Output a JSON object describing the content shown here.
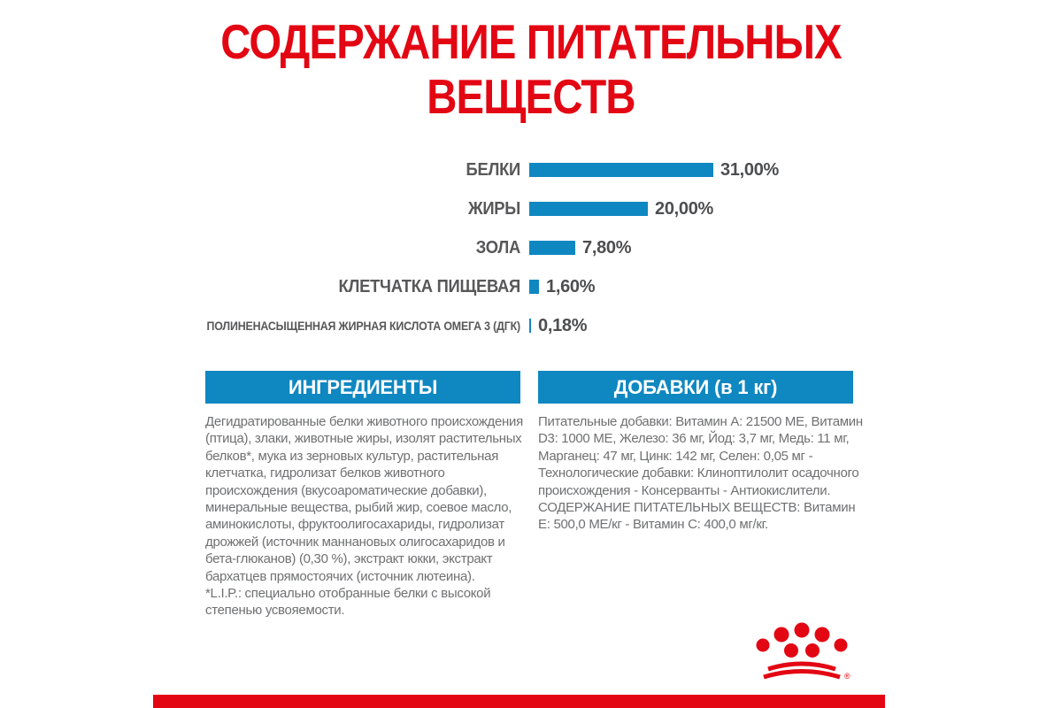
{
  "title": {
    "line1": "СОДЕРЖАНИЕ ПИТАТЕЛЬНЫХ",
    "line2": "ВЕЩЕСТВ"
  },
  "chart_data": {
    "type": "bar",
    "orientation": "horizontal",
    "title": "СОДЕРЖАНИЕ ПИТАТЕЛЬНЫХ ВЕЩЕСТВ",
    "categories": [
      "БЕЛКИ",
      "ЖИРЫ",
      "ЗОЛА",
      "КЛЕТЧАТКА ПИЩЕВАЯ",
      "ПОЛИНЕНАСЫЩЕННАЯ ЖИРНАЯ КИСЛОТА ОМЕГА 3 (ДГК)"
    ],
    "values": [
      31.0,
      20.0,
      7.8,
      1.6,
      0.18
    ],
    "value_labels": [
      "31,00%",
      "20,00%",
      "7,80%",
      "1,60%",
      "0,18%"
    ],
    "unit": "%",
    "xlim": [
      0,
      31
    ],
    "grid": false,
    "legend": false,
    "bar_color": "#0f87c1",
    "label_color": "#58585a"
  },
  "sections": {
    "ingredients": {
      "header": "ИНГРЕДИЕНТЫ",
      "paragraphs": [
        "Дегидратированные белки животного происхождения (птица), злаки, животные жиры, изолят растительных белков*, мука из зерновых культур, растительная клетчатка, гидролизат белков животного происхождения (вкусоароматические добавки), минеральные вещества, рыбий жир, соевое масло, аминокислоты, фруктоолигосахариды, гидролизат дрожжей (источник маннановых олигосахаридов и бета-глюканов) (0,30 %), экстракт юкки, экстракт бархатцев прямостоячих (источник лютеина).",
        "*L.I.P.: специально отобранные белки с высокой степенью усвояемости."
      ]
    },
    "additives": {
      "header": "ДОБАВКИ (в 1 кг)",
      "paragraphs": [
        "Питательные добавки: Витамин A: 21500 ME, Витамин D3: 1000 ME, Железо: 36 мг, Йод: 3,7 мг, Медь: 11 мг, Марганец: 47 мг, Цинк: 142 мг, Селен: 0,05 мг - Технологические добавки: Клиноптилолит осадочного происхождения - Консерванты - Антиокислители.",
        "СОДЕРЖАНИЕ ПИТАТЕЛЬНЫХ ВЕЩЕСТВ: Витамин E: 500,0 МЕ/кг - Витамин C: 400,0 мг/кг."
      ]
    }
  },
  "footer": {
    "brand_logo": "royal-canin-crown",
    "registered_mark": "®"
  },
  "colors": {
    "red": "#e30613",
    "blue": "#0f87c1",
    "chart_label": "#58585a",
    "value_label": "#4d4e50",
    "body_text": "#6f7072"
  }
}
